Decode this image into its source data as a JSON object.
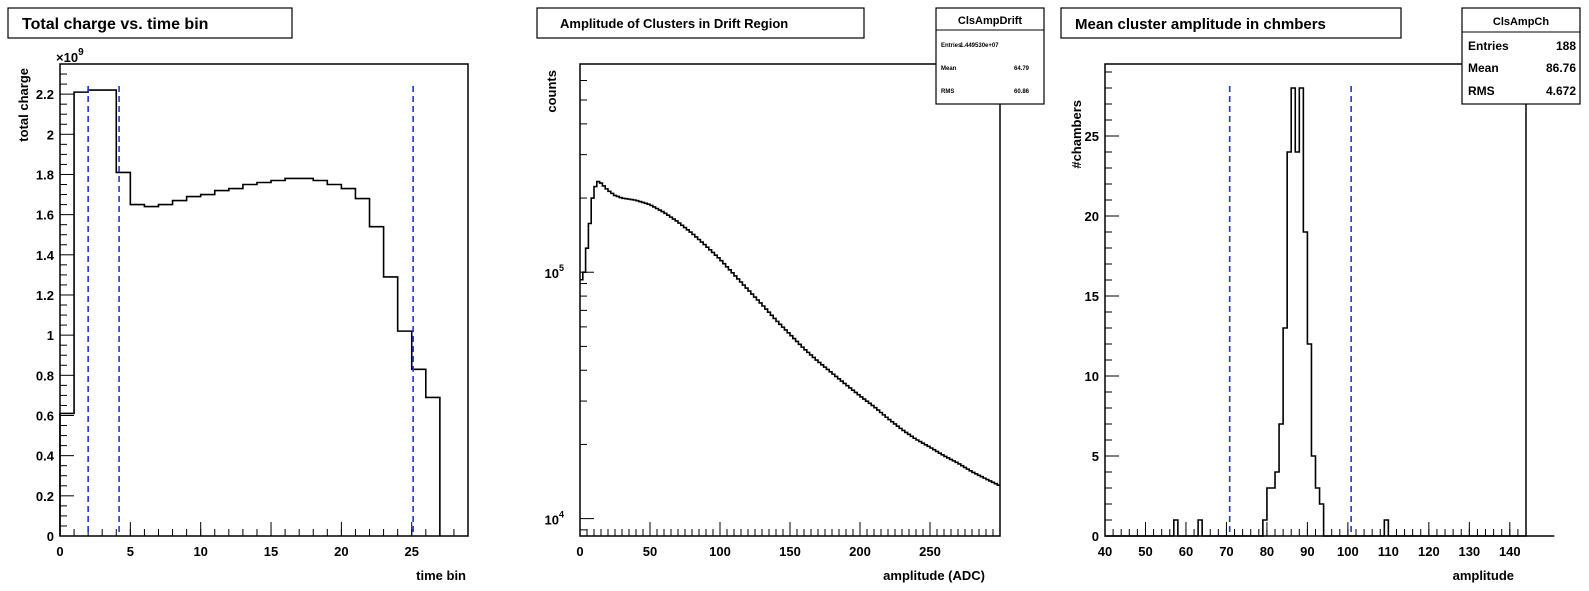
{
  "chart_data": [
    {
      "type": "histogram",
      "title": "Total charge vs. time bin",
      "xlabel": "time bin",
      "ylabel": "total charge",
      "y_multiplier_label": "×10",
      "y_multiplier_exponent": "9",
      "xlim": [
        0,
        29
      ],
      "ylim": [
        0,
        2.35
      ],
      "x_ticks": [
        0,
        5,
        10,
        15,
        20,
        25
      ],
      "y_ticks": [
        0,
        0.2,
        0.4,
        0.6,
        0.8,
        1,
        1.2,
        1.4,
        1.6,
        1.8,
        2,
        2.2
      ],
      "bin_edges_start": 0,
      "bin_width": 1,
      "values": [
        0.61,
        2.21,
        2.22,
        2.22,
        1.81,
        1.65,
        1.64,
        1.65,
        1.67,
        1.69,
        1.7,
        1.72,
        1.73,
        1.75,
        1.76,
        1.77,
        1.78,
        1.78,
        1.77,
        1.75,
        1.73,
        1.68,
        1.54,
        1.29,
        1.02,
        0.83,
        0.69
      ],
      "cut_lines_x": [
        2,
        4.2,
        25.1
      ],
      "cut_line_color": "#2233dd"
    },
    {
      "type": "histogram",
      "title": "Amplitude of Clusters in Drift Region",
      "xlabel": "amplitude (ADC)",
      "ylabel": "counts",
      "log_y": true,
      "xlim": [
        0,
        300
      ],
      "ylim": [
        8500,
        700000
      ],
      "x_ticks": [
        0,
        50,
        100,
        150,
        200,
        250
      ],
      "y_major_ticks": [
        10000,
        100000
      ],
      "y_major_labels": [
        "10",
        "10"
      ],
      "y_major_exponents": [
        "4",
        "5"
      ],
      "curve_points": [
        [
          0,
          90000
        ],
        [
          3,
          100000
        ],
        [
          6,
          140000
        ],
        [
          9,
          200000
        ],
        [
          12,
          235000
        ],
        [
          15,
          230000
        ],
        [
          20,
          215000
        ],
        [
          25,
          205000
        ],
        [
          30,
          200000
        ],
        [
          40,
          196000
        ],
        [
          50,
          188000
        ],
        [
          60,
          175000
        ],
        [
          70,
          160000
        ],
        [
          80,
          144000
        ],
        [
          90,
          128000
        ],
        [
          100,
          113000
        ],
        [
          110,
          98000
        ],
        [
          120,
          85000
        ],
        [
          130,
          74000
        ],
        [
          140,
          64000
        ],
        [
          150,
          56000
        ],
        [
          160,
          49000
        ],
        [
          170,
          43500
        ],
        [
          180,
          39000
        ],
        [
          190,
          35000
        ],
        [
          200,
          31500
        ],
        [
          210,
          28500
        ],
        [
          220,
          25500
        ],
        [
          230,
          23000
        ],
        [
          240,
          21000
        ],
        [
          250,
          19500
        ],
        [
          260,
          18000
        ],
        [
          270,
          16800
        ],
        [
          280,
          15500
        ],
        [
          290,
          14500
        ],
        [
          300,
          13600
        ]
      ],
      "stats": {
        "name": "ClsAmpDrift",
        "rows": [
          {
            "label": "Entries",
            "value": "1.449530e+07"
          },
          {
            "label": "Mean",
            "value": "64.79"
          },
          {
            "label": "RMS",
            "value": "60.86"
          }
        ]
      }
    },
    {
      "type": "histogram",
      "title": "Mean cluster amplitude in chmbers",
      "xlabel": "amplitude",
      "ylabel": "#chambers",
      "xlim": [
        40,
        144
      ],
      "ylim": [
        0,
        29.5
      ],
      "x_ticks": [
        40,
        50,
        60,
        70,
        80,
        90,
        100,
        110,
        120,
        130,
        140
      ],
      "y_ticks": [
        0,
        5,
        10,
        15,
        20,
        25
      ],
      "bin_edges_start": 40,
      "bin_width": 1,
      "values": [
        0,
        0,
        0,
        0,
        0,
        0,
        0,
        0,
        0,
        0,
        0,
        0,
        0,
        0,
        0,
        0,
        0,
        1,
        0,
        0,
        0,
        0,
        0,
        1,
        0,
        0,
        0,
        0,
        0,
        0,
        0,
        0,
        0,
        0,
        0,
        0,
        0,
        0,
        0,
        1,
        3,
        3,
        4,
        7,
        13,
        24,
        28,
        24,
        28,
        19,
        12,
        5,
        3,
        2,
        0,
        0,
        0,
        0,
        0,
        0,
        0,
        0,
        0,
        0,
        0,
        0,
        0,
        0,
        0,
        1,
        0,
        0,
        0,
        0,
        0,
        0,
        0,
        0,
        0,
        0,
        0,
        0,
        0,
        0,
        0,
        0,
        0,
        0,
        0,
        0,
        0,
        0,
        0,
        0,
        0,
        0,
        0,
        0,
        0,
        0,
        0,
        0,
        0,
        0,
        0,
        0,
        0,
        0,
        0,
        0,
        0
      ],
      "cut_lines_x": [
        70.8,
        100.8
      ],
      "cut_line_color": "#2233dd",
      "stats": {
        "name": "ClsAmpCh",
        "rows": [
          {
            "label": "Entries",
            "value": "188"
          },
          {
            "label": "Mean",
            "value": "86.76"
          },
          {
            "label": "RMS",
            "value": "4.672"
          }
        ]
      }
    }
  ]
}
